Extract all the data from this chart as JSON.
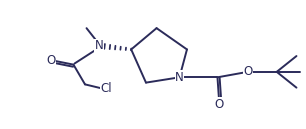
{
  "bg_color": "#ffffff",
  "line_color": "#2b2b5a",
  "atom_color": "#2b2b5a",
  "line_width": 1.4,
  "font_size": 8.5,
  "fig_width": 3.06,
  "fig_height": 1.29,
  "dpi": 100,
  "xlim": [
    0,
    10
  ],
  "ylim": [
    0,
    4.2
  ]
}
